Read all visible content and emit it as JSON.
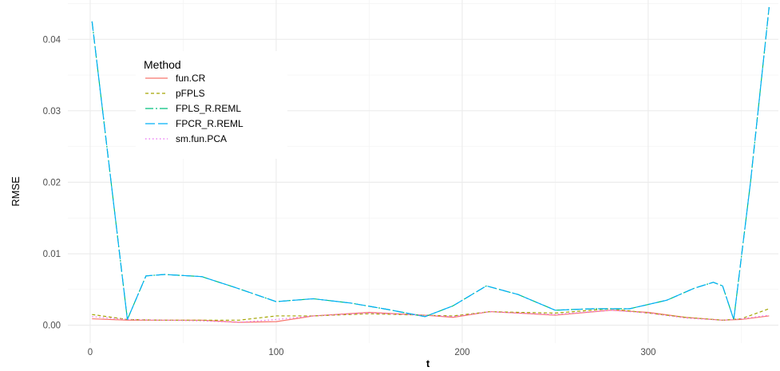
{
  "chart_data": {
    "type": "line",
    "title": "",
    "xlabel": "t",
    "ylabel": "RMSE",
    "xlim": [
      -12,
      370
    ],
    "ylim": [
      -0.0025,
      0.0455
    ],
    "x_ticks": [
      0,
      100,
      200,
      300
    ],
    "x_tick_labels": [
      "0",
      "100",
      "200",
      "300"
    ],
    "y_ticks": [
      0,
      0.01,
      0.02,
      0.03,
      0.04
    ],
    "y_tick_labels": [
      "0.00",
      "0.01",
      "0.02",
      "0.03",
      "0.04"
    ],
    "grid": true,
    "legend": {
      "title": "Method",
      "position": "top-left"
    },
    "series": [
      {
        "name": "fun.CR",
        "color": "#F8766D",
        "dash": "solid",
        "points": [
          [
            1,
            0.0009
          ],
          [
            20,
            0.0007
          ],
          [
            40,
            0.0007
          ],
          [
            60,
            0.0007
          ],
          [
            80,
            0.0004
          ],
          [
            100,
            0.0005
          ],
          [
            120,
            0.0013
          ],
          [
            150,
            0.0018
          ],
          [
            180,
            0.0014
          ],
          [
            195,
            0.0011
          ],
          [
            215,
            0.0019
          ],
          [
            230,
            0.0017
          ],
          [
            250,
            0.0014
          ],
          [
            280,
            0.0021
          ],
          [
            300,
            0.0018
          ],
          [
            320,
            0.0011
          ],
          [
            340,
            0.0007
          ],
          [
            350,
            0.0008
          ],
          [
            365,
            0.0013
          ]
        ]
      },
      {
        "name": "pFPLS",
        "color": "#A3A500",
        "dash": "4,3",
        "points": [
          [
            1,
            0.0015
          ],
          [
            20,
            0.0008
          ],
          [
            40,
            0.0007
          ],
          [
            60,
            0.0007
          ],
          [
            80,
            0.0007
          ],
          [
            100,
            0.0013
          ],
          [
            120,
            0.0013
          ],
          [
            150,
            0.0016
          ],
          [
            180,
            0.0014
          ],
          [
            195,
            0.0013
          ],
          [
            215,
            0.0019
          ],
          [
            230,
            0.0018
          ],
          [
            250,
            0.0017
          ],
          [
            280,
            0.0023
          ],
          [
            300,
            0.0017
          ],
          [
            320,
            0.0011
          ],
          [
            340,
            0.0007
          ],
          [
            350,
            0.0009
          ],
          [
            365,
            0.0023
          ]
        ]
      },
      {
        "name": "FPLS_R.REML",
        "color": "#00BF7D",
        "dash": "10,3,2,3",
        "points": [
          [
            1,
            0.0425
          ],
          [
            20,
            0.0008
          ],
          [
            30,
            0.0069
          ],
          [
            40,
            0.0071
          ],
          [
            60,
            0.0068
          ],
          [
            80,
            0.0051
          ],
          [
            100,
            0.0033
          ],
          [
            120,
            0.0037
          ],
          [
            140,
            0.0031
          ],
          [
            160,
            0.0022
          ],
          [
            180,
            0.0012
          ],
          [
            195,
            0.0027
          ],
          [
            213,
            0.0055
          ],
          [
            230,
            0.0043
          ],
          [
            250,
            0.0021
          ],
          [
            270,
            0.0023
          ],
          [
            290,
            0.0023
          ],
          [
            310,
            0.0035
          ],
          [
            325,
            0.0052
          ],
          [
            335,
            0.006
          ],
          [
            340,
            0.0055
          ],
          [
            346,
            0.0008
          ],
          [
            355,
            0.02
          ],
          [
            365,
            0.0445
          ]
        ]
      },
      {
        "name": "FPCR_R.REML",
        "color": "#00B0F6",
        "dash": "12,4",
        "points": [
          [
            1,
            0.0425
          ],
          [
            20,
            0.0008
          ],
          [
            30,
            0.0069
          ],
          [
            40,
            0.0071
          ],
          [
            60,
            0.0068
          ],
          [
            80,
            0.0051
          ],
          [
            100,
            0.0033
          ],
          [
            120,
            0.0037
          ],
          [
            140,
            0.0031
          ],
          [
            160,
            0.0022
          ],
          [
            180,
            0.0012
          ],
          [
            195,
            0.0027
          ],
          [
            213,
            0.0055
          ],
          [
            230,
            0.0043
          ],
          [
            250,
            0.0021
          ],
          [
            270,
            0.0023
          ],
          [
            290,
            0.0023
          ],
          [
            310,
            0.0035
          ],
          [
            325,
            0.0052
          ],
          [
            335,
            0.006
          ],
          [
            340,
            0.0055
          ],
          [
            346,
            0.0008
          ],
          [
            355,
            0.02
          ],
          [
            365,
            0.0445
          ]
        ]
      },
      {
        "name": "sm.fun.PCA",
        "color": "#E76BF3",
        "dash": "1.5,3",
        "points": [
          [
            1,
            0.0012
          ],
          [
            20,
            0.0008
          ],
          [
            40,
            0.0007
          ],
          [
            60,
            0.0006
          ],
          [
            80,
            0.0004
          ],
          [
            100,
            0.0008
          ],
          [
            120,
            0.0013
          ],
          [
            150,
            0.0017
          ],
          [
            180,
            0.0014
          ],
          [
            195,
            0.0012
          ],
          [
            215,
            0.0019
          ],
          [
            230,
            0.0017
          ],
          [
            250,
            0.0015
          ],
          [
            280,
            0.0021
          ],
          [
            300,
            0.0017
          ],
          [
            320,
            0.001
          ],
          [
            340,
            0.0007
          ],
          [
            350,
            0.0009
          ],
          [
            365,
            0.0014
          ]
        ]
      }
    ]
  }
}
